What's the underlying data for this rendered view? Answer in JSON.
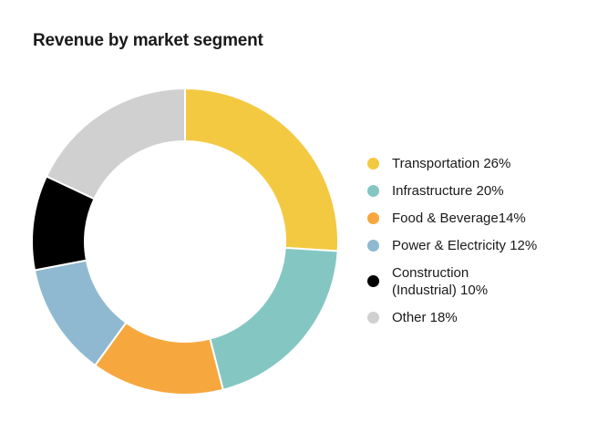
{
  "chart_data": {
    "type": "pie",
    "donut": true,
    "title": "Revenue by market segment",
    "legend_position": "right",
    "slices": [
      {
        "label": "Transportation 26%",
        "name": "Transportation",
        "value": 26,
        "color": "#F4C942"
      },
      {
        "label": "Infrastructure 20%",
        "name": "Infrastructure",
        "value": 20,
        "color": "#84C6C2"
      },
      {
        "label": "Food & Beverage14%",
        "name": "Food & Beverage",
        "value": 14,
        "color": "#F6A83F"
      },
      {
        "label": "Power & Electricity 12%",
        "name": "Power & Electricity",
        "value": 12,
        "color": "#8FB9D0"
      },
      {
        "label": "Construction (Industrial) 10%",
        "name": "Construction (Industrial)",
        "value": 10,
        "color": "#000000"
      },
      {
        "label": "Other 18%",
        "name": "Other",
        "value": 18,
        "color": "#D0D0D0"
      }
    ]
  }
}
